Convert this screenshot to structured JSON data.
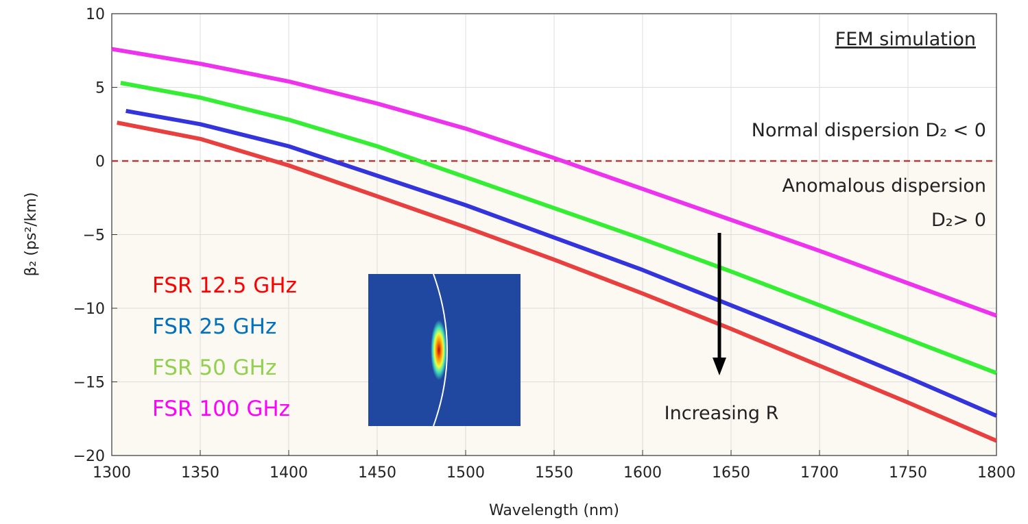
{
  "chart_data": {
    "type": "line",
    "x_label": "Wavelength (nm)",
    "y_label": "β₂ (ps²/km)",
    "xlim": [
      1300,
      1800
    ],
    "xticks": [
      1300,
      1350,
      1400,
      1450,
      1500,
      1550,
      1600,
      1650,
      1700,
      1750,
      1800
    ],
    "ylim": [
      -20,
      10
    ],
    "yticks": [
      {
        "value": -20,
        "label": "−20"
      },
      {
        "value": -15,
        "label": "−15"
      },
      {
        "value": -10,
        "label": "−10"
      },
      {
        "value": -5,
        "label": "−5"
      },
      0,
      5,
      10
    ],
    "grid": true,
    "reference_line": {
      "y": 0,
      "color": "#a8403a"
    },
    "series": [
      {
        "name": "FSR 12.5 GHz",
        "color": "#e8403f",
        "label_color": "#ff0000",
        "x": [
          1303,
          1350,
          1400,
          1450,
          1500,
          1550,
          1600,
          1650,
          1700,
          1750,
          1800
        ],
        "values": [
          2.6,
          1.5,
          -0.3,
          -2.4,
          -4.5,
          -6.7,
          -9.0,
          -11.4,
          -13.9,
          -16.4,
          -19.0
        ]
      },
      {
        "name": "FSR 25 GHz",
        "color": "#3434dc",
        "label_color": "#0070c0",
        "x": [
          1308,
          1350,
          1400,
          1450,
          1500,
          1550,
          1600,
          1650,
          1700,
          1750,
          1800
        ],
        "values": [
          3.4,
          2.5,
          1.0,
          -1.0,
          -3.0,
          -5.2,
          -7.4,
          -9.8,
          -12.2,
          -14.7,
          -17.3
        ]
      },
      {
        "name": "FSR 50 GHz",
        "color": "#33ee33",
        "label_color": "#92d050",
        "x": [
          1305,
          1350,
          1400,
          1450,
          1500,
          1550,
          1600,
          1650,
          1700,
          1750,
          1800
        ],
        "values": [
          5.3,
          4.3,
          2.8,
          1.0,
          -1.1,
          -3.2,
          -5.3,
          -7.5,
          -9.8,
          -12.1,
          -14.4
        ]
      },
      {
        "name": "FSR 100 GHz",
        "color": "#ee33ee",
        "label_color": "#ff00ff",
        "x": [
          1300,
          1350,
          1400,
          1450,
          1500,
          1550,
          1600,
          1650,
          1700,
          1750,
          1800
        ],
        "values": [
          7.6,
          6.6,
          5.4,
          3.9,
          2.2,
          0.2,
          -1.9,
          -4.0,
          -6.1,
          -8.3,
          -10.5
        ]
      }
    ],
    "annotations": [
      "FEM simulation",
      "Normal dispersion D₂ < 0",
      "Anomalous dispersion",
      "D₂> 0",
      "Increasing R"
    ]
  }
}
